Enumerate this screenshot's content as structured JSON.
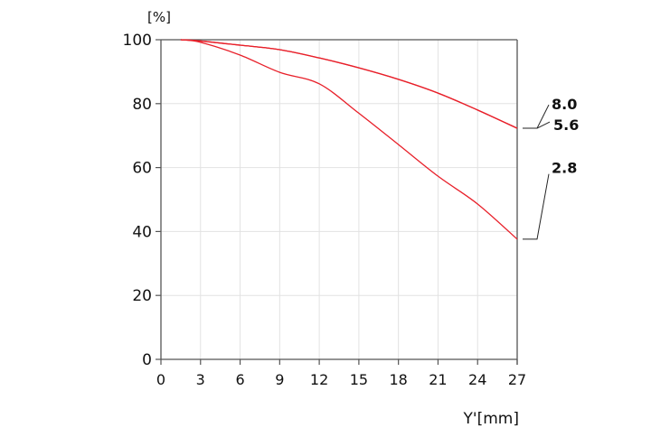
{
  "chart_data": {
    "type": "line",
    "title": "",
    "xlabel": "Y'[mm]",
    "ylabel": "[%]",
    "xlim": [
      0,
      27
    ],
    "ylim": [
      0,
      100
    ],
    "xticks": [
      0,
      3,
      6,
      9,
      12,
      15,
      18,
      21,
      24,
      27
    ],
    "yticks": [
      0,
      20,
      40,
      60,
      80,
      100
    ],
    "grid": true,
    "line_color": "#e8202a",
    "series": [
      {
        "name": "8.0",
        "x": [
          1.5,
          3,
          6,
          9,
          12,
          15,
          18,
          21,
          24,
          27
        ],
        "y": [
          100,
          99.6,
          98.3,
          96.9,
          94.3,
          91.2,
          87.6,
          83.3,
          78,
          72.3
        ]
      },
      {
        "name": "5.6",
        "x": [
          1.5,
          3,
          6,
          9,
          12,
          15,
          18,
          21,
          24,
          27
        ],
        "y": [
          100,
          99.6,
          98.3,
          96.9,
          94.3,
          91.2,
          87.6,
          83.3,
          78,
          72.3
        ]
      },
      {
        "name": "2.8",
        "x": [
          1.5,
          3,
          6,
          9,
          12,
          15,
          18,
          21,
          24,
          27
        ],
        "y": [
          100,
          99.2,
          95.2,
          89.8,
          86.2,
          77,
          67.2,
          57.3,
          48.6,
          37.6
        ]
      }
    ]
  }
}
